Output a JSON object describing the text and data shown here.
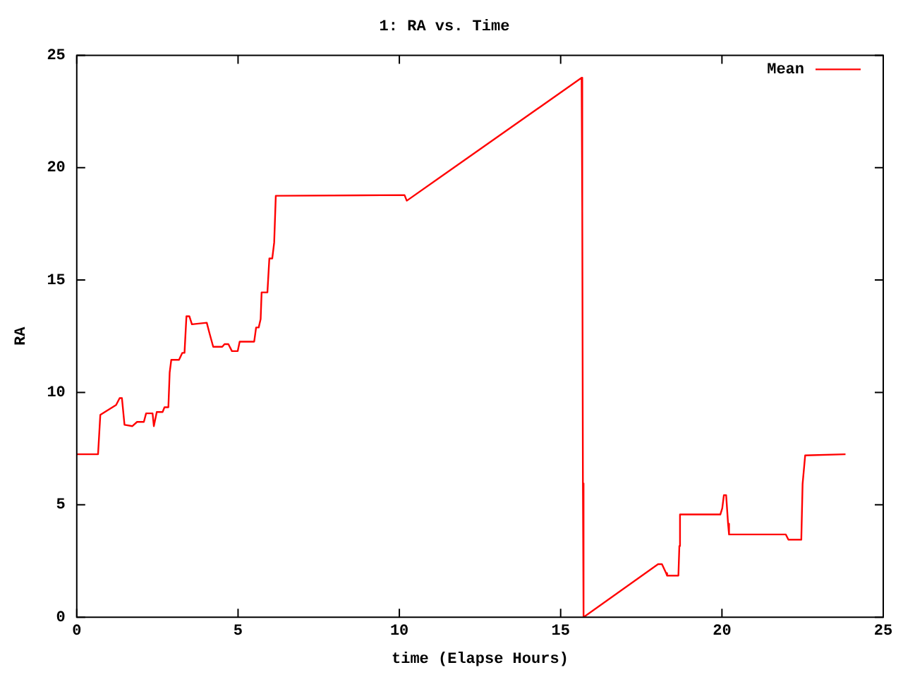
{
  "chart_data": {
    "type": "line",
    "title": "1: RA vs. Time",
    "xlabel": "time (Elapse Hours)",
    "ylabel": "RA",
    "xlim": [
      0,
      25
    ],
    "xticks": [
      0,
      5,
      10,
      15,
      20,
      25
    ],
    "ylim": [
      0,
      25
    ],
    "yticks": [
      0,
      5,
      10,
      15,
      20,
      25
    ],
    "legend": "top right",
    "marker": "none",
    "line_style": "solid",
    "series": [
      {
        "name": "Mean",
        "color": "#ff0000",
        "x": [
          0,
          0.66,
          0.73,
          1.22,
          1.33,
          1.4,
          1.48,
          1.72,
          1.87,
          2.08,
          2.15,
          2.35,
          2.39,
          2.48,
          2.66,
          2.72,
          2.84,
          2.88,
          2.93,
          3.17,
          3.27,
          3.34,
          3.4,
          3.49,
          3.57,
          4.03,
          4.11,
          4.23,
          4.51,
          4.58,
          4.7,
          4.81,
          4.99,
          5.05,
          5.5,
          5.56,
          5.64,
          5.7,
          5.73,
          5.91,
          5.97,
          6.06,
          6.12,
          6.17,
          10.16,
          10.23,
          15.65,
          15.67,
          15.69,
          15.71,
          18.02,
          18.14,
          18.27,
          18.3,
          18.65,
          18.68,
          18.7,
          19.95,
          20.01,
          20.06,
          20.13,
          20.19,
          20.22,
          21.98,
          22.06,
          22.46,
          22.5,
          22.58,
          23.83
        ],
        "values": [
          7.25,
          7.25,
          9.0,
          9.44,
          9.75,
          9.75,
          8.56,
          8.5,
          8.69,
          8.69,
          9.07,
          9.07,
          8.5,
          9.13,
          9.13,
          9.34,
          9.34,
          10.88,
          11.45,
          11.45,
          11.76,
          11.76,
          13.39,
          13.39,
          13.03,
          13.1,
          12.66,
          12.03,
          12.03,
          12.15,
          12.15,
          11.84,
          11.84,
          12.26,
          12.26,
          12.89,
          12.89,
          13.26,
          14.45,
          14.45,
          15.96,
          15.96,
          16.67,
          18.75,
          18.78,
          18.53,
          24.0,
          18.1,
          5.95,
          0,
          2.36,
          2.36,
          1.96,
          1.85,
          1.85,
          3.17,
          4.57,
          4.57,
          4.85,
          5.43,
          5.43,
          4.16,
          3.68,
          3.68,
          3.45,
          3.45,
          5.93,
          7.2,
          7.25
        ]
      }
    ]
  }
}
